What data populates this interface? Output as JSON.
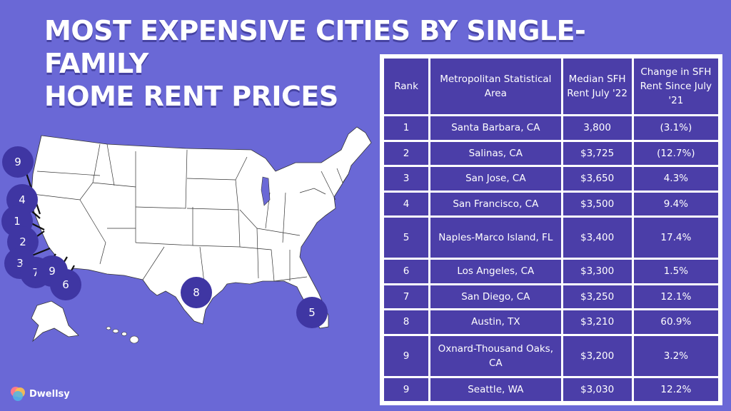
{
  "title_line1": "MOST EXPENSIVE CITIES BY SINGLE-FAMILY",
  "title_line2": "HOME RENT PRICES",
  "brand": "Dwellsy",
  "colors": {
    "background": "#6a68d6",
    "table_cell": "#4b3ea8",
    "marker": "#3f36a3",
    "map_fill": "#ffffff"
  },
  "table": {
    "headers": [
      "Rank",
      "Metropolitan Statistical Area",
      "Median SFH Rent July '22",
      "Change in SFH Rent Since July '21"
    ],
    "rows": [
      {
        "rank": "1",
        "area": "Santa Barbara, CA",
        "rent": "3,800",
        "change": "(3.1%)"
      },
      {
        "rank": "2",
        "area": "Salinas, CA",
        "rent": "$3,725",
        "change": "(12.7%)"
      },
      {
        "rank": "3",
        "area": "San Jose, CA",
        "rent": "$3,650",
        "change": "4.3%"
      },
      {
        "rank": "4",
        "area": "San Francisco, CA",
        "rent": "$3,500",
        "change": "9.4%"
      },
      {
        "rank": "5",
        "area": "Naples-Marco Island, FL",
        "rent": "$3,400",
        "change": "17.4%"
      },
      {
        "rank": "6",
        "area": "Los Angeles, CA",
        "rent": "$3,300",
        "change": "1.5%"
      },
      {
        "rank": "7",
        "area": "San Diego, CA",
        "rent": "$3,250",
        "change": "12.1%"
      },
      {
        "rank": "8",
        "area": "Austin, TX",
        "rent": "$3,210",
        "change": "60.9%"
      },
      {
        "rank": "9",
        "area": "Oxnard-Thousand Oaks, CA",
        "rent": "$3,200",
        "change": "3.2%"
      },
      {
        "rank": "9",
        "area": "Seattle, WA",
        "rent": "$3,030",
        "change": "12.2%"
      }
    ]
  },
  "map_markers": [
    "9",
    "4",
    "1",
    "2",
    "3",
    "7",
    "9",
    "6",
    "8",
    "5"
  ],
  "chart_data": {
    "type": "table",
    "title": "MOST EXPENSIVE CITIES BY SINGLE-FAMILY HOME RENT PRICES",
    "columns": [
      "Rank",
      "Metropolitan Statistical Area",
      "Median SFH Rent July '22",
      "Change in SFH Rent Since July '21"
    ],
    "rows": [
      [
        "1",
        "Santa Barbara, CA",
        "3,800",
        "(3.1%)"
      ],
      [
        "2",
        "Salinas, CA",
        "$3,725",
        "(12.7%)"
      ],
      [
        "3",
        "San Jose, CA",
        "$3,650",
        "4.3%"
      ],
      [
        "4",
        "San Francisco, CA",
        "$3,500",
        "9.4%"
      ],
      [
        "5",
        "Naples-Marco Island, FL",
        "$3,400",
        "17.4%"
      ],
      [
        "6",
        "Los Angeles, CA",
        "$3,300",
        "1.5%"
      ],
      [
        "7",
        "San Diego, CA",
        "$3,250",
        "12.1%"
      ],
      [
        "8",
        "Austin, TX",
        "$3,210",
        "60.9%"
      ],
      [
        "9",
        "Oxnard-Thousand Oaks, CA",
        "$3,200",
        "3.2%"
      ],
      [
        "9",
        "Seattle, WA",
        "$3,030",
        "12.2%"
      ]
    ]
  }
}
